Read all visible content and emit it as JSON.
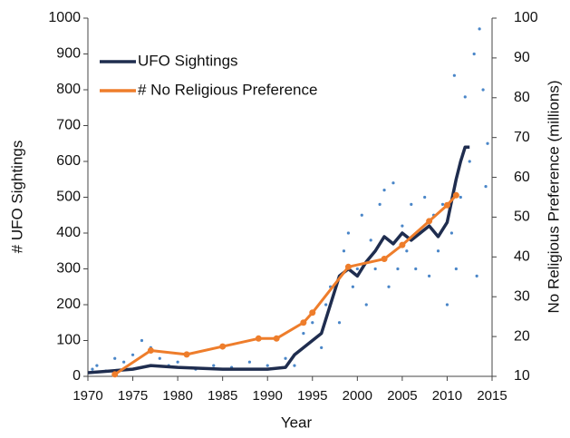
{
  "chart_data": {
    "type": "line",
    "xlabel": "Year",
    "ylabel": "# UFO Sightings",
    "y2label": "No Religious Preference (millions)",
    "xlim": [
      1970,
      2015
    ],
    "xticks": [
      1970,
      1975,
      1980,
      1985,
      1990,
      1995,
      2000,
      2005,
      2010,
      2015
    ],
    "ylim": [
      0,
      1000
    ],
    "yticks": [
      0,
      100,
      200,
      300,
      400,
      500,
      600,
      700,
      800,
      900,
      1000
    ],
    "y2lim": [
      10,
      100
    ],
    "y2ticks": [
      10,
      20,
      30,
      40,
      50,
      60,
      70,
      80,
      90,
      100
    ],
    "legend": "upper left",
    "series": [
      {
        "type": "scatter",
        "color": "#4a86c8",
        "x": [
          1970.5,
          1971,
          1972,
          1973,
          1974,
          1975,
          1976,
          1977,
          1978,
          1979,
          1980,
          1982,
          1984,
          1986,
          1988,
          1990,
          1992,
          1993,
          1994,
          1995,
          1996,
          1996.5,
          1997,
          1998,
          1998.5,
          1999,
          1999.5,
          2000,
          2000.5,
          2001,
          2001.5,
          2002,
          2002.5,
          2003,
          2003.5,
          2004,
          2004.5,
          2005,
          2005.5,
          2006,
          2006.5,
          2007,
          2007.5,
          2008,
          2008.5,
          2009,
          2009.5,
          2010,
          2010.5,
          2010.8,
          2011,
          2011.5,
          2012,
          2012.5,
          2013,
          2013.3,
          2013.6,
          2014,
          2014.5,
          2014.3
        ],
        "values": [
          20,
          30,
          15,
          50,
          40,
          60,
          100,
          80,
          50,
          30,
          40,
          20,
          30,
          25,
          40,
          30,
          50,
          30,
          120,
          150,
          80,
          200,
          250,
          150,
          350,
          400,
          250,
          300,
          450,
          200,
          380,
          300,
          480,
          520,
          250,
          540,
          300,
          420,
          350,
          480,
          300,
          400,
          500,
          280,
          450,
          350,
          480,
          200,
          400,
          840,
          300,
          500,
          780,
          600,
          900,
          280,
          970,
          800,
          650,
          530
        ]
      },
      {
        "name": "UFO Sightings",
        "color": "#1f2d4f",
        "x": [
          1970,
          1975,
          1977,
          1980,
          1985,
          1990,
          1992,
          1993,
          1995,
          1996,
          1997,
          1998,
          1999,
          2000,
          2001,
          2002,
          2003,
          2004,
          2005,
          2006,
          2007,
          2008,
          2009,
          2010,
          2011,
          2011.5,
          2012,
          2012.5
        ],
        "values": [
          10,
          20,
          30,
          25,
          20,
          20,
          25,
          60,
          100,
          120,
          200,
          280,
          300,
          280,
          320,
          350,
          390,
          370,
          400,
          380,
          400,
          420,
          390,
          430,
          550,
          600,
          640,
          640
        ]
      },
      {
        "name": "# No Religious Preference",
        "color": "#ee7d2b",
        "axis": "y2",
        "x": [
          1973,
          1977,
          1981,
          1985,
          1989,
          1991,
          1994,
          1995,
          1999,
          2003,
          2005,
          2008,
          2010,
          2011
        ],
        "values": [
          10.5,
          16.5,
          15.5,
          17.5,
          19.5,
          19.5,
          23.5,
          26,
          37.5,
          39.5,
          43,
          49,
          53,
          55.5
        ]
      }
    ]
  }
}
